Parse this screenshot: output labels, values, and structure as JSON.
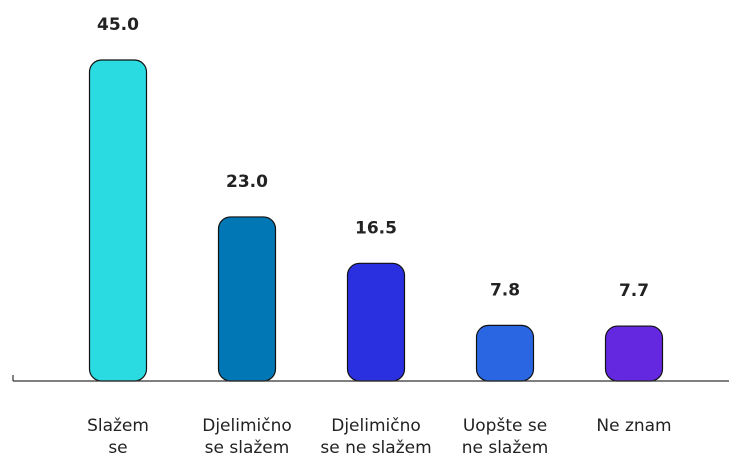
{
  "chart_data": {
    "type": "bar",
    "title": "",
    "xlabel": "",
    "ylabel": "",
    "ylim": [
      0,
      45
    ],
    "grid": false,
    "legend": "none",
    "categories": [
      [
        "Slažem",
        "se"
      ],
      [
        "Djelimično",
        "se slažem"
      ],
      [
        "Djelimično",
        "se ne slažem"
      ],
      [
        "Uopšte se",
        "ne slažem"
      ],
      [
        "Ne znam"
      ]
    ],
    "values": [
      45.0,
      23.0,
      16.5,
      7.8,
      7.7
    ],
    "value_labels": [
      "45.0",
      "23.0",
      "16.5",
      "7.8",
      "7.7"
    ],
    "colors": [
      "#2adbe2",
      "#0177b5",
      "#2a2fe0",
      "#2a66e1",
      "#6328e0"
    ],
    "bar_stroke": "#111111",
    "axis_color": "#333333"
  }
}
